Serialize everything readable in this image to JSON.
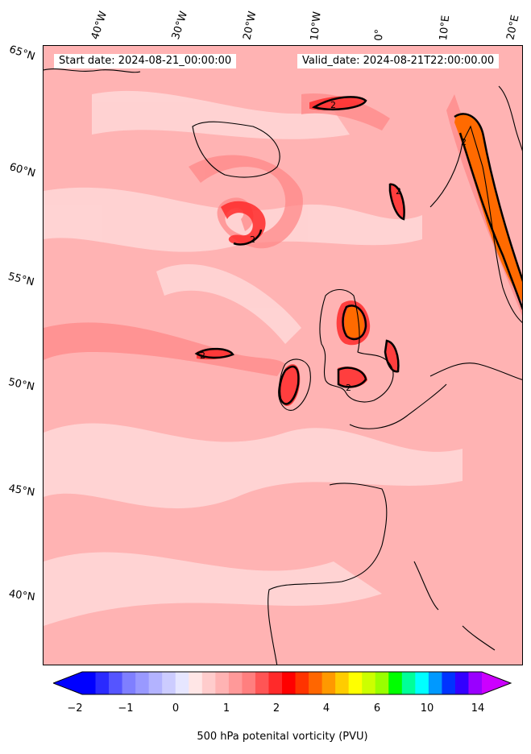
{
  "map": {
    "start_date": "Start date: 2024-08-21_00:00:00",
    "valid_date": "Valid_date: 2024-08-21T22:00:00.00",
    "longitude_labels": [
      "40°W",
      "30°W",
      "20°W",
      "10°W",
      "0°",
      "10°E",
      "20°E"
    ],
    "latitude_labels": [
      "65°N",
      "60°N",
      "55°N",
      "50°N",
      "45°N",
      "40°N"
    ],
    "contour_label": "2",
    "colors": {
      "background_field": "#ffcaca",
      "light_field": "#ffe1e1",
      "medium_field": "#ff9a9a",
      "strong_field": "#ff3535",
      "peak_field": "#ff6a00",
      "coastline": "#000000"
    }
  },
  "colorbar": {
    "title": "500 hPa potenital vorticity (PVU)",
    "tick_labels": [
      "−2",
      "−1",
      "0",
      "1",
      "2",
      "4",
      "6",
      "10",
      "14"
    ],
    "colors": [
      "#0000ff",
      "#2a2aff",
      "#5555ff",
      "#7f7fff",
      "#9999ff",
      "#b3b3ff",
      "#ccccff",
      "#e6e6ff",
      "#ffe6e6",
      "#ffcccc",
      "#ffb3b3",
      "#ff9999",
      "#ff7f7f",
      "#ff5555",
      "#ff2a2a",
      "#ff0000",
      "#ff3300",
      "#ff6600",
      "#ff9900",
      "#ffcc00",
      "#ffff00",
      "#ccff00",
      "#99ff00",
      "#00ff00",
      "#00ff99",
      "#00ffff",
      "#0099ff",
      "#0033ff",
      "#3300ff",
      "#9900ff"
    ],
    "under_color": "#0000ff",
    "over_color": "#cc00ff"
  }
}
